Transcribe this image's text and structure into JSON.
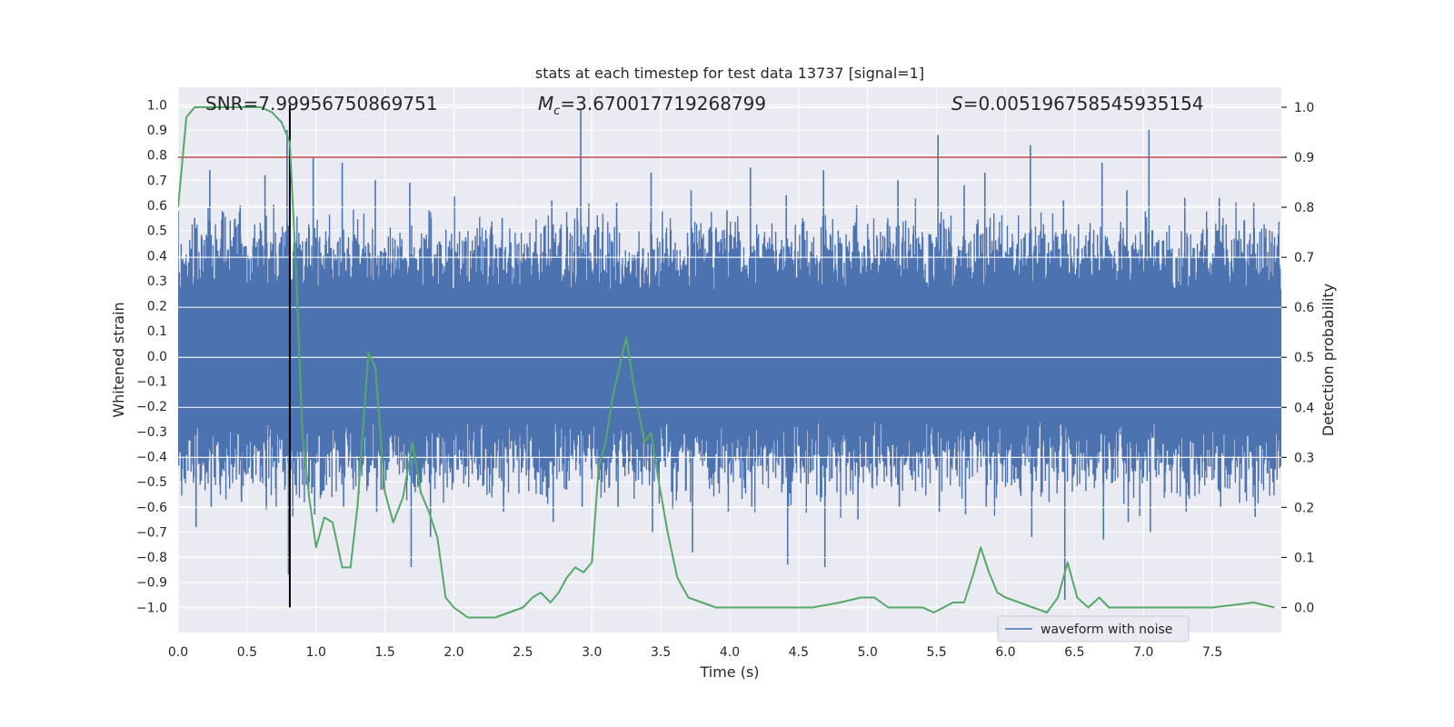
{
  "chart_data": {
    "type": "line",
    "title": "stats at each timestep for test data 13737 [signal=1]",
    "xlabel": "Time (s)",
    "ylabel_left": "Whitened strain",
    "ylabel_right": "Detection probability",
    "xlim": [
      0.0,
      8.0
    ],
    "ylim_left": [
      -1.1,
      1.07
    ],
    "ylim_right": [
      -0.05,
      1.04
    ],
    "x_ticks": [
      "0.0",
      "0.5",
      "1.0",
      "1.5",
      "2.0",
      "2.5",
      "3.0",
      "3.5",
      "4.0",
      "4.5",
      "5.0",
      "5.5",
      "6.0",
      "6.5",
      "7.0",
      "7.5"
    ],
    "x_tick_values": [
      0.0,
      0.5,
      1.0,
      1.5,
      2.0,
      2.5,
      3.0,
      3.5,
      4.0,
      4.5,
      5.0,
      5.5,
      6.0,
      6.5,
      7.0,
      7.5
    ],
    "y_left_ticks": [
      "1.0",
      "0.9",
      "0.8",
      "0.7",
      "0.6",
      "0.5",
      "0.4",
      "0.3",
      "0.2",
      "0.1",
      "0.0",
      "−0.1",
      "−0.2",
      "−0.3",
      "−0.4",
      "−0.5",
      "−0.6",
      "−0.7",
      "−0.8",
      "−0.9",
      "−1.0"
    ],
    "y_left_tick_values": [
      1.0,
      0.9,
      0.8,
      0.7,
      0.6,
      0.5,
      0.4,
      0.3,
      0.2,
      0.1,
      0.0,
      -0.1,
      -0.2,
      -0.3,
      -0.4,
      -0.5,
      -0.6,
      -0.7,
      -0.8,
      -0.9,
      -1.0
    ],
    "y_right_ticks": [
      "1.0",
      "0.9",
      "0.8",
      "0.7",
      "0.6",
      "0.5",
      "0.4",
      "0.3",
      "0.2",
      "0.1",
      "0.0"
    ],
    "y_right_tick_values": [
      1.0,
      0.9,
      0.8,
      0.7,
      0.6,
      0.5,
      0.4,
      0.3,
      0.2,
      0.1,
      0.0
    ],
    "annotations": {
      "snr": "SNR=7.99956750869751",
      "mc_symbol": "M",
      "mc_sub": "c",
      "mc_value": "=3.670017719268799",
      "s_symbol": "S",
      "s_value": "=0.005196758545935154"
    },
    "threshold": {
      "value": 0.9,
      "axis": "right",
      "color": "#c44e52"
    },
    "marker_line": {
      "x": 0.81,
      "y_from": -1.0,
      "y_to": 1.0,
      "color": "#000000"
    },
    "waveform": {
      "name": "waveform with noise",
      "color": "#4c72b0",
      "core_amplitude": 0.22,
      "spike_times": [
        0.23,
        0.63,
        0.79,
        0.98,
        1.19,
        1.43,
        1.68,
        2.92,
        3.43,
        4.15,
        4.68,
        5.51,
        5.85,
        6.18,
        6.7,
        7.04,
        7.55,
        0.12,
        0.45,
        1.82,
        2.35,
        2.71,
        3.18,
        3.72,
        3.98,
        4.41,
        4.92,
        5.22,
        5.7,
        6.42,
        6.88,
        7.3,
        7.8
      ],
      "spike_highs": [
        0.74,
        0.72,
        0.9,
        0.79,
        0.77,
        0.7,
        0.69,
        0.98,
        0.73,
        0.75,
        0.74,
        0.88,
        0.73,
        0.84,
        0.77,
        0.9,
        0.63,
        0.55,
        0.6,
        0.58,
        0.55,
        0.62,
        0.61,
        0.66,
        0.58,
        0.64,
        0.6,
        0.7,
        0.68,
        0.62,
        0.66,
        0.63,
        0.61
      ],
      "spike_lows": [
        -0.6,
        -0.61,
        -0.87,
        -0.63,
        -0.6,
        -0.62,
        -0.84,
        -0.6,
        -0.7,
        -0.6,
        -0.84,
        -0.62,
        -0.6,
        -0.72,
        -0.73,
        -0.7,
        -0.6,
        -0.68,
        -0.58,
        -0.72,
        -0.62,
        -0.66,
        -0.6,
        -0.78,
        -0.62,
        -0.83,
        -0.65,
        -0.6,
        -0.63,
        -0.97,
        -0.66,
        -0.62,
        -0.64
      ]
    },
    "probability_series": {
      "name": "detection probability",
      "color": "#55a868",
      "x": [
        0.0,
        0.06,
        0.12,
        0.2,
        0.3,
        0.4,
        0.5,
        0.6,
        0.68,
        0.75,
        0.81,
        0.86,
        0.9,
        0.95,
        1.0,
        1.06,
        1.12,
        1.19,
        1.25,
        1.3,
        1.38,
        1.43,
        1.5,
        1.56,
        1.63,
        1.7,
        1.76,
        1.82,
        1.88,
        1.94,
        2.0,
        2.1,
        2.2,
        2.3,
        2.4,
        2.5,
        2.57,
        2.63,
        2.7,
        2.76,
        2.82,
        2.88,
        2.94,
        3.0,
        3.05,
        3.1,
        3.15,
        3.2,
        3.25,
        3.3,
        3.38,
        3.43,
        3.48,
        3.55,
        3.62,
        3.7,
        3.8,
        3.9,
        4.0,
        4.2,
        4.4,
        4.6,
        4.8,
        4.95,
        5.05,
        5.15,
        5.3,
        5.4,
        5.48,
        5.55,
        5.62,
        5.7,
        5.77,
        5.82,
        5.88,
        5.94,
        6.0,
        6.1,
        6.2,
        6.3,
        6.38,
        6.45,
        6.52,
        6.6,
        6.68,
        6.75,
        6.85,
        7.0,
        7.2,
        7.5,
        7.8,
        7.95
      ],
      "y": [
        0.8,
        0.98,
        1.0,
        1.0,
        1.0,
        1.0,
        1.0,
        1.0,
        0.99,
        0.97,
        0.93,
        0.65,
        0.35,
        0.22,
        0.12,
        0.18,
        0.17,
        0.08,
        0.08,
        0.2,
        0.51,
        0.48,
        0.23,
        0.17,
        0.22,
        0.33,
        0.23,
        0.19,
        0.14,
        0.02,
        0.0,
        -0.02,
        -0.02,
        -0.02,
        -0.01,
        0.0,
        0.02,
        0.03,
        0.01,
        0.03,
        0.06,
        0.08,
        0.07,
        0.09,
        0.28,
        0.33,
        0.42,
        0.48,
        0.54,
        0.45,
        0.33,
        0.35,
        0.26,
        0.15,
        0.06,
        0.02,
        0.01,
        0.0,
        0.0,
        0.0,
        0.0,
        0.0,
        0.01,
        0.02,
        0.02,
        0.0,
        0.0,
        0.0,
        -0.01,
        0.0,
        0.01,
        0.01,
        0.07,
        0.12,
        0.07,
        0.03,
        0.02,
        0.01,
        0.0,
        -0.01,
        0.02,
        0.09,
        0.02,
        0.0,
        0.02,
        0.0,
        0.0,
        0.0,
        0.0,
        0.0,
        0.01,
        0.0
      ]
    },
    "legend": {
      "label": "waveform with noise",
      "placement": "lower-right"
    }
  }
}
